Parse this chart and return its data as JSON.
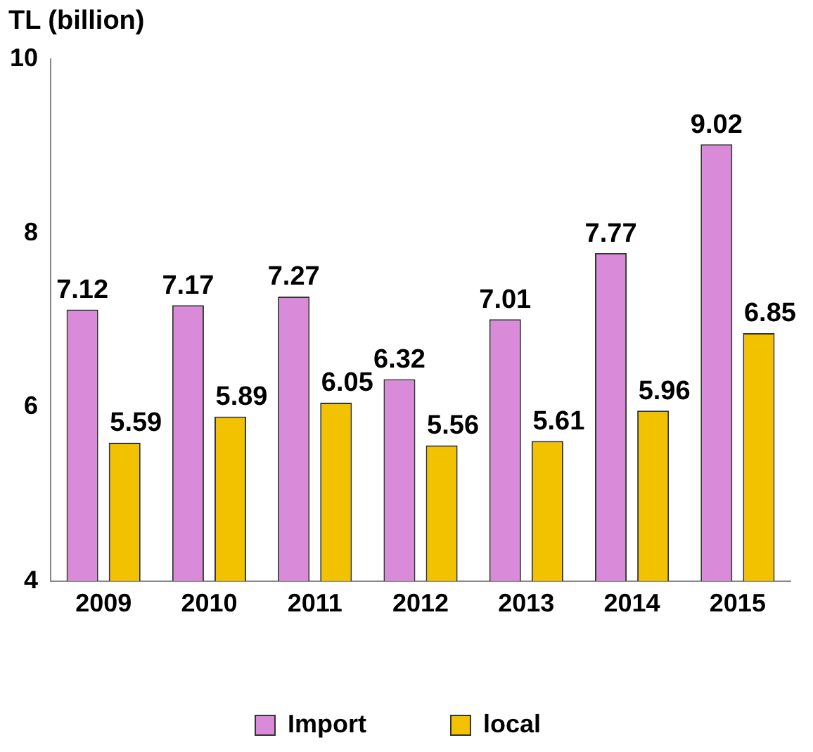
{
  "chart_data": {
    "type": "bar",
    "ylabel": "TL (billion)",
    "categories": [
      "2009",
      "2010",
      "2011",
      "2012",
      "2013",
      "2014",
      "2015"
    ],
    "series": [
      {
        "name": "Import",
        "color": "#d98ad9",
        "values": [
          7.12,
          7.17,
          7.27,
          6.32,
          7.01,
          7.77,
          9.02
        ]
      },
      {
        "name": "local",
        "color": "#f2c200",
        "values": [
          5.59,
          5.89,
          6.05,
          5.56,
          5.61,
          5.96,
          6.85
        ]
      }
    ],
    "ylim": [
      4,
      10
    ],
    "yticks": [
      4,
      6,
      8,
      10
    ],
    "grid": false,
    "legend": "bottom",
    "data_labels": true
  }
}
